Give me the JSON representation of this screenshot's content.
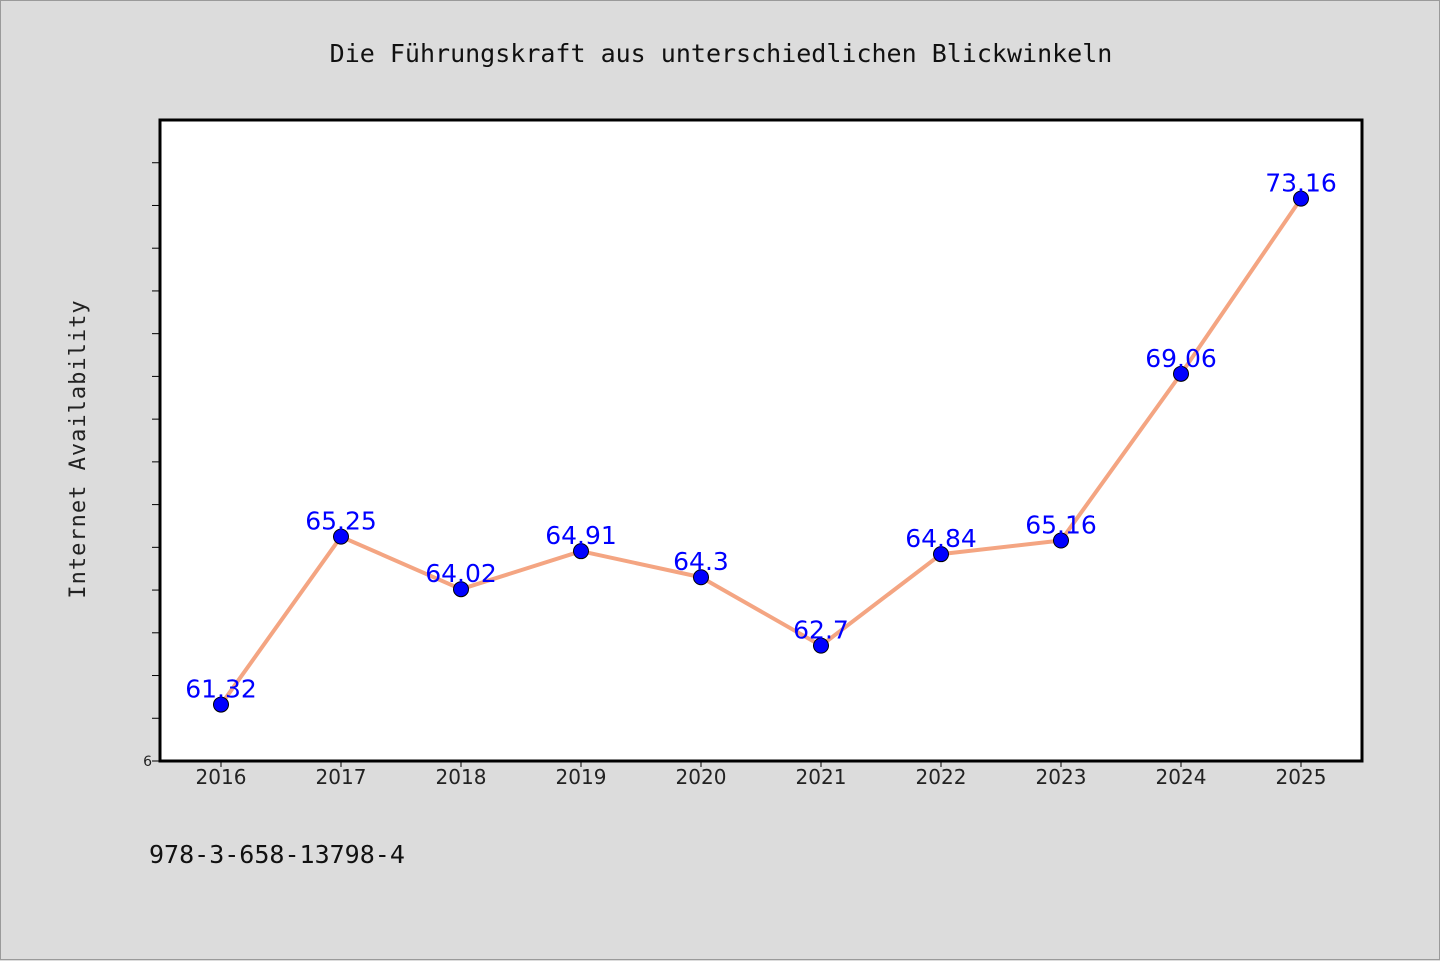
{
  "chart_data": {
    "type": "line",
    "title": "Die Führungskraft aus unterschiedlichen Blickwinkeln",
    "xlabel": "",
    "ylabel": "Internet Availability",
    "categories": [
      "2016",
      "2017",
      "2018",
      "2019",
      "2020",
      "2021",
      "2022",
      "2023",
      "2024",
      "2025"
    ],
    "series": [
      {
        "values": [
          61.32,
          65.25,
          64.02,
          64.91,
          64.3,
          62.7,
          64.84,
          65.16,
          69.06,
          73.16
        ],
        "line_color": "#f4a582",
        "marker_color": "#0000ff"
      }
    ],
    "data_labels": [
      "61.32",
      "65.25",
      "64.02",
      "64.91",
      "64.3",
      "62.7",
      "64.84",
      "65.16",
      "69.06",
      "73.16"
    ],
    "ylim": [
      60,
      75
    ],
    "y_tick_step": 1,
    "y_tick_labels_visible": [
      "6"
    ],
    "grid": false,
    "legend": "none",
    "plot_background": "#ffffff"
  },
  "footer": {
    "isbn": "978-3-658-13798-4"
  }
}
